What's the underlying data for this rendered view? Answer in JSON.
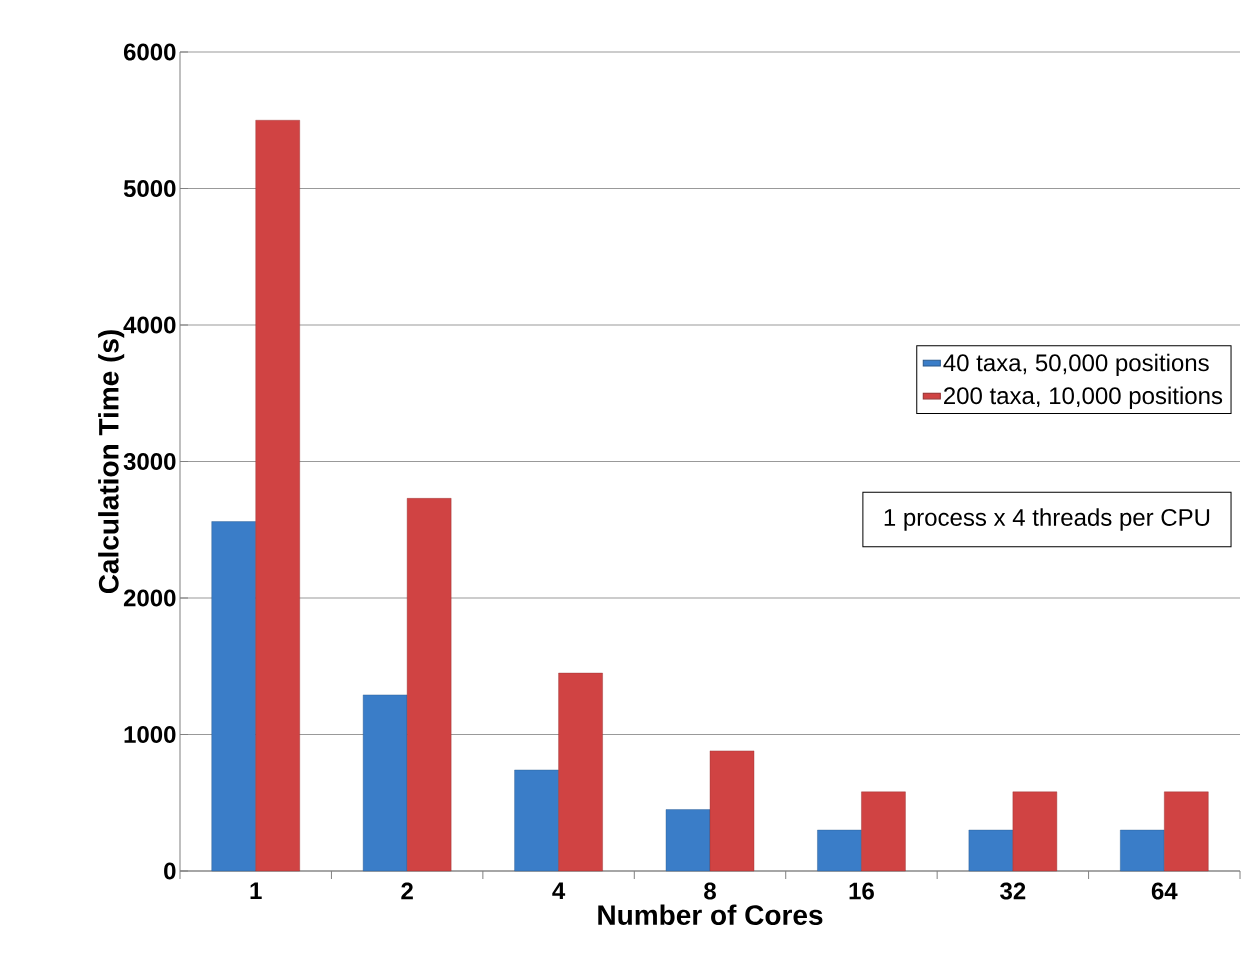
{
  "chart_data": {
    "type": "bar",
    "xlabel": "Number of Cores",
    "ylabel": "Calculation Time (s)",
    "categories": [
      "1",
      "2",
      "4",
      "8",
      "16",
      "32",
      "64"
    ],
    "series": [
      {
        "name": "40 taxa, 50,000 positions",
        "color": "#3a7dc8",
        "values": [
          2560,
          1290,
          740,
          450,
          300,
          300,
          300
        ]
      },
      {
        "name": "200 taxa, 10,000 positions",
        "color": "#d04343",
        "values": [
          5500,
          2730,
          1450,
          880,
          580,
          580,
          580
        ]
      }
    ],
    "ylim": [
      0,
      6000
    ],
    "yticks": [
      0,
      1000,
      2000,
      3000,
      4000,
      5000,
      6000
    ],
    "grid": "y",
    "legend": "right",
    "annotations": [
      "1 process x 4 threads per CPU"
    ]
  }
}
